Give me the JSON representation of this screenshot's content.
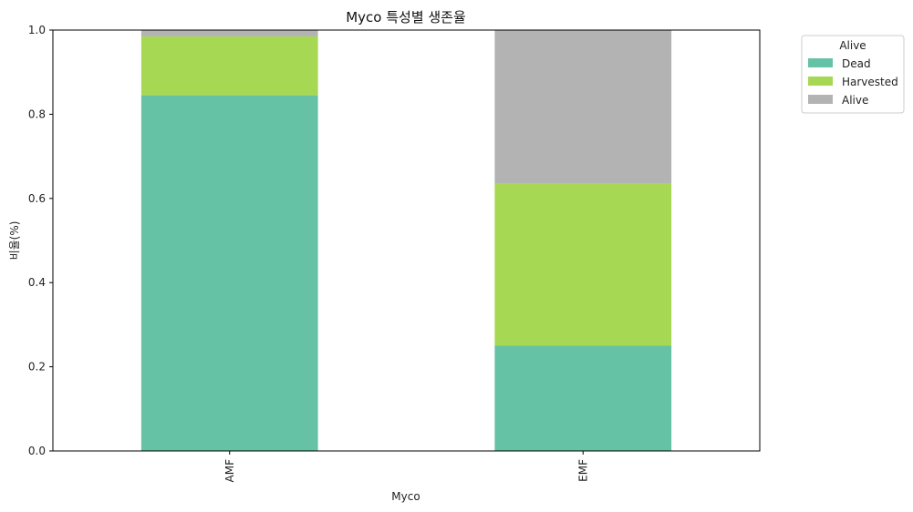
{
  "chart_data": {
    "type": "bar",
    "stacked": true,
    "title": "Myco 특성별 생존율",
    "xlabel": "Myco",
    "ylabel": "비율(%)",
    "ylim": [
      0,
      1.0
    ],
    "yticks": [
      "0.0",
      "0.2",
      "0.4",
      "0.6",
      "0.8",
      "1.0"
    ],
    "categories": [
      "AMF",
      "EMF"
    ],
    "series": [
      {
        "name": "Dead",
        "values": [
          0.845,
          0.25
        ],
        "color": "#66c2a5"
      },
      {
        "name": "Harvested",
        "values": [
          0.14,
          0.385
        ],
        "color": "#a6d854"
      },
      {
        "name": "Alive",
        "values": [
          0.015,
          0.365
        ],
        "color": "#b3b3b3"
      }
    ],
    "legend": {
      "title": "Alive",
      "placement": "outside-right-top"
    },
    "grid": false
  }
}
